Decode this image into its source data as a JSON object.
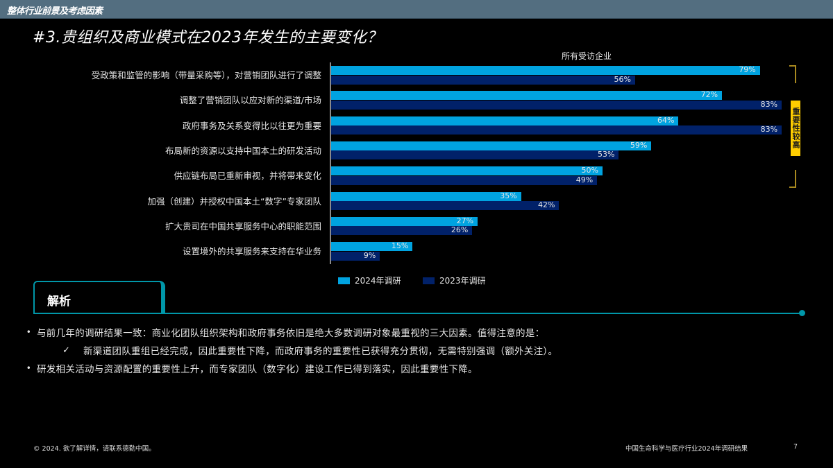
{
  "header": {
    "section": "整体行业前景及考虑因素",
    "title": "#3.贵组织及商业模式在2023年发生的主要变化？"
  },
  "chart_data": {
    "type": "bar",
    "orientation": "horizontal",
    "title": "所有受访企业",
    "categories": [
      "受政策和监管的影响（带量采购等），对营销团队进行了调整",
      "调整了营销团队以应对新的渠道/市场",
      "政府事务及关系变得比以往更为重要",
      "布局新的资源以支持中国本土的研发活动",
      "供应链布局已重新审视，并将带来变化",
      "加强（创建）并授权中国本土“数字”专家团队",
      "扩大贵司在中国共享服务中心的职能范围",
      "设置境外的共享服务来支持在华业务"
    ],
    "series": [
      {
        "name": "2024年调研",
        "color": "#00a3e0",
        "values": [
          79,
          72,
          64,
          59,
          50,
          35,
          27,
          15
        ]
      },
      {
        "name": "2023年调研",
        "color": "#012169",
        "values": [
          56,
          83,
          83,
          53,
          49,
          42,
          26,
          9
        ]
      }
    ],
    "value_labels": {
      "2024": [
        "79%",
        "72%",
        "64%",
        "59%",
        "50%",
        "35%",
        "27%",
        "15%"
      ],
      "2023": [
        "56%",
        "83%",
        "83%",
        "53%",
        "49%",
        "42%",
        "26%",
        "9%"
      ]
    },
    "xlabel": "",
    "ylabel": "",
    "xlim": [
      0,
      100
    ],
    "grid": false,
    "legend_position": "bottom",
    "annotation": {
      "text": "重要性较高",
      "covers_rows": [
        0,
        4
      ],
      "color": "#ffcd00"
    }
  },
  "analysis": {
    "tab_label": "解析",
    "bullets": [
      {
        "type": "bullet",
        "marker": "•",
        "text": "与前几年的调研结果一致：商业化团队组织架构和政府事务依旧是绝大多数调研对象最重视的三大因素。值得注意的是："
      },
      {
        "type": "check",
        "marker": "✓",
        "text": "新渠道团队重组已经完成，因此重要性下降，而政府事务的重要性已获得充分贯彻，无需特别强调（额外关注）。"
      },
      {
        "type": "bullet",
        "marker": "•",
        "text": "研发相关活动与资源配置的重要性上升，而专家团队（数字化）建设工作已得到落实，因此重要性下降。"
      }
    ]
  },
  "footer": {
    "left": "© 2024. 欲了解详情，请联系德勤中国。",
    "right": "中国生命科学与医疗行业2024年调研结果",
    "page": "7"
  }
}
